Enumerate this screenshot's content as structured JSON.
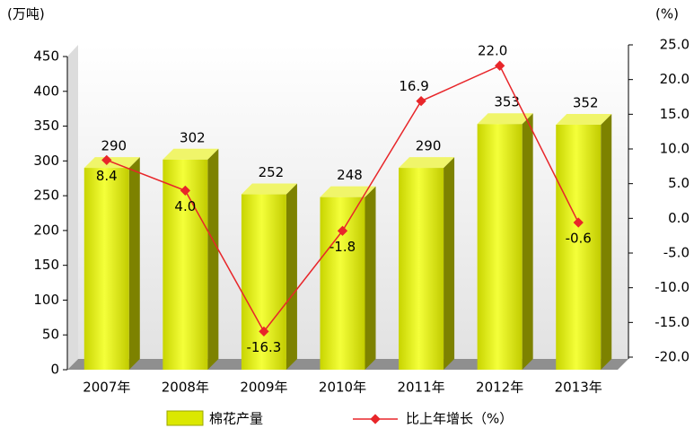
{
  "chart_data": {
    "type": "bar",
    "y_label": "(万吨)",
    "y2_label": "(%)",
    "categories": [
      "2007年",
      "2008年",
      "2009年",
      "2010年",
      "2011年",
      "2012年",
      "2013年"
    ],
    "series": [
      {
        "name": "棉花产量",
        "color": "#dbe800",
        "values": [
          290,
          302,
          252,
          248,
          290,
          353,
          352
        ]
      },
      {
        "name": "比上年增长（%）",
        "type": "line",
        "axis": "y2",
        "color": "#e8262a",
        "values": [
          8.4,
          4.0,
          -16.3,
          -1.8,
          16.9,
          22.0,
          -0.6
        ],
        "value_labels": [
          "8.4",
          "4.0",
          "-16.3",
          "-1.8",
          "16.9",
          "22.0",
          "-0.6"
        ]
      }
    ],
    "ylim": [
      0,
      450
    ],
    "yticks": [
      0,
      50,
      100,
      150,
      200,
      250,
      300,
      350,
      400,
      450
    ],
    "y2lim": [
      -20,
      25
    ],
    "y2ticks": [
      {
        "value": -20,
        "label": "-20.0"
      },
      {
        "value": -15,
        "label": "-15.0"
      },
      {
        "value": -10,
        "label": "-10.0"
      },
      {
        "value": -5,
        "label": "-5.0"
      },
      {
        "value": 0,
        "label": "0.0"
      },
      {
        "value": 5,
        "label": "5.0"
      },
      {
        "value": 10,
        "label": "10.0"
      },
      {
        "value": 15,
        "label": "15.0"
      },
      {
        "value": 20,
        "label": "20.0"
      },
      {
        "value": 25,
        "label": "25.0"
      }
    ]
  }
}
